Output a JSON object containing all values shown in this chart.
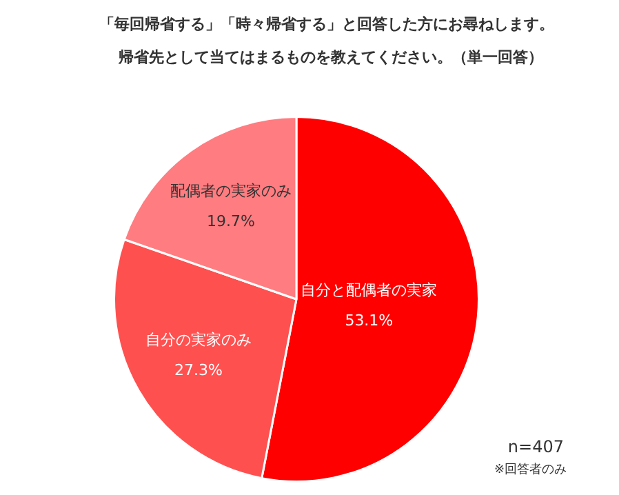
{
  "chart_data": {
    "type": "pie",
    "title": "「毎回帰省する」「時々帰省する」と回答した方にお尋ねします。",
    "subtitle": "帰省先として当てはまるものを教えてください。（単一回答）",
    "categories": [
      "自分と配偶者の実家",
      "自分の実家のみ",
      "配偶者の実家のみ"
    ],
    "values": [
      53.1,
      27.3,
      19.7
    ],
    "value_labels": [
      "53.1%",
      "27.3%",
      "19.7%"
    ],
    "colors": [
      "#ff0000",
      "#ff5050",
      "#ff7c80"
    ],
    "legend": false,
    "annotations": [
      "n=407",
      "※回答者のみ"
    ]
  }
}
